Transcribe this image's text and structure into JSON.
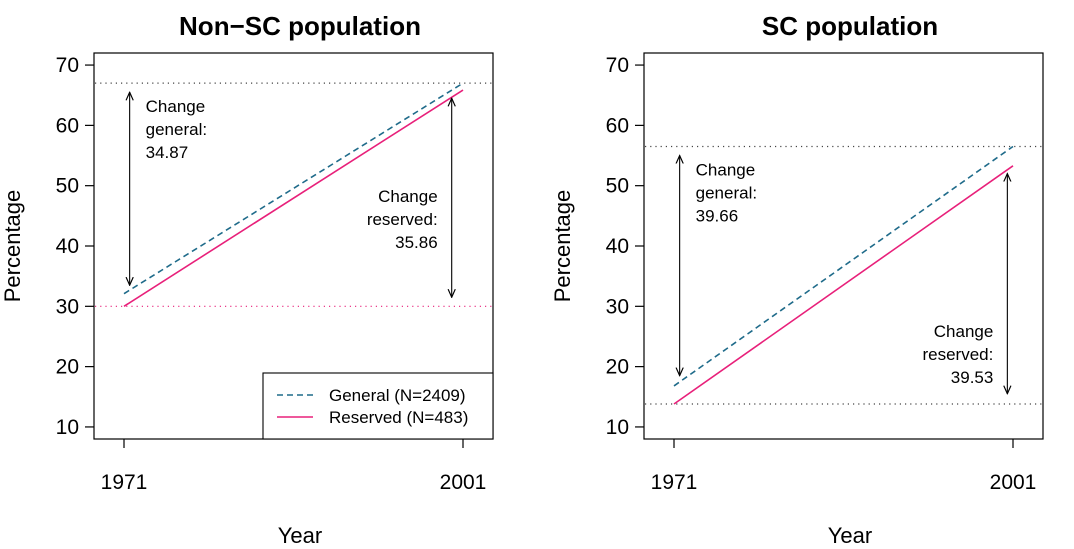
{
  "chart_data": [
    {
      "type": "line",
      "title": "Non−SC population",
      "xlabel": "Year",
      "ylabel": "Percentage",
      "x": [
        1971,
        2001
      ],
      "xticks": [
        "1971",
        "2001"
      ],
      "yticks": [
        "10",
        "20",
        "30",
        "40",
        "50",
        "60",
        "70"
      ],
      "ylim": [
        8,
        72
      ],
      "grid": false,
      "series": [
        {
          "name": "General (N=2409)",
          "values": [
            32.1,
            67.0
          ],
          "color": "#1f6b8a",
          "style": "dashed"
        },
        {
          "name": "Reserved (N=483)",
          "values": [
            30.0,
            65.86
          ],
          "color": "#e8207a",
          "style": "solid"
        }
      ],
      "reference_lines": [
        {
          "y": 67.0,
          "color": "#444444",
          "style": "dotted"
        },
        {
          "y": 30.0,
          "color": "#e8207a",
          "style": "dotted"
        }
      ],
      "annotations": [
        {
          "lines": [
            "Change",
            "general:",
            "34.87"
          ],
          "arrow": {
            "x": 1971.5,
            "y": [
              33.5,
              65.5
            ]
          },
          "anchor": "start"
        },
        {
          "lines": [
            "Change",
            "reserved:",
            "35.86"
          ],
          "arrow": {
            "x": 2000.0,
            "y": [
              31.5,
              64.5
            ]
          },
          "anchor": "end"
        }
      ],
      "legend": {
        "placement": "bottom-right"
      }
    },
    {
      "type": "line",
      "title": "SC population",
      "xlabel": "Year",
      "ylabel": "Percentage",
      "x": [
        1971,
        2001
      ],
      "xticks": [
        "1971",
        "2001"
      ],
      "yticks": [
        "10",
        "20",
        "30",
        "40",
        "50",
        "60",
        "70"
      ],
      "ylim": [
        8,
        72
      ],
      "grid": false,
      "series": [
        {
          "name": "General",
          "values": [
            16.8,
            56.5
          ],
          "color": "#1f6b8a",
          "style": "dashed"
        },
        {
          "name": "Reserved",
          "values": [
            13.8,
            53.3
          ],
          "color": "#e8207a",
          "style": "solid"
        }
      ],
      "reference_lines": [
        {
          "y": 56.5,
          "color": "#444444",
          "style": "dotted"
        },
        {
          "y": 13.8,
          "color": "#444444",
          "style": "dotted"
        }
      ],
      "annotations": [
        {
          "lines": [
            "Change",
            "general:",
            "39.66"
          ],
          "arrow": {
            "x": 1971.5,
            "y": [
              18.5,
              55.0
            ]
          },
          "anchor": "start"
        },
        {
          "lines": [
            "Change",
            "reserved:",
            "39.53"
          ],
          "arrow": {
            "x": 2000.5,
            "y": [
              15.5,
              52.0
            ]
          },
          "anchor": "end"
        }
      ]
    }
  ]
}
